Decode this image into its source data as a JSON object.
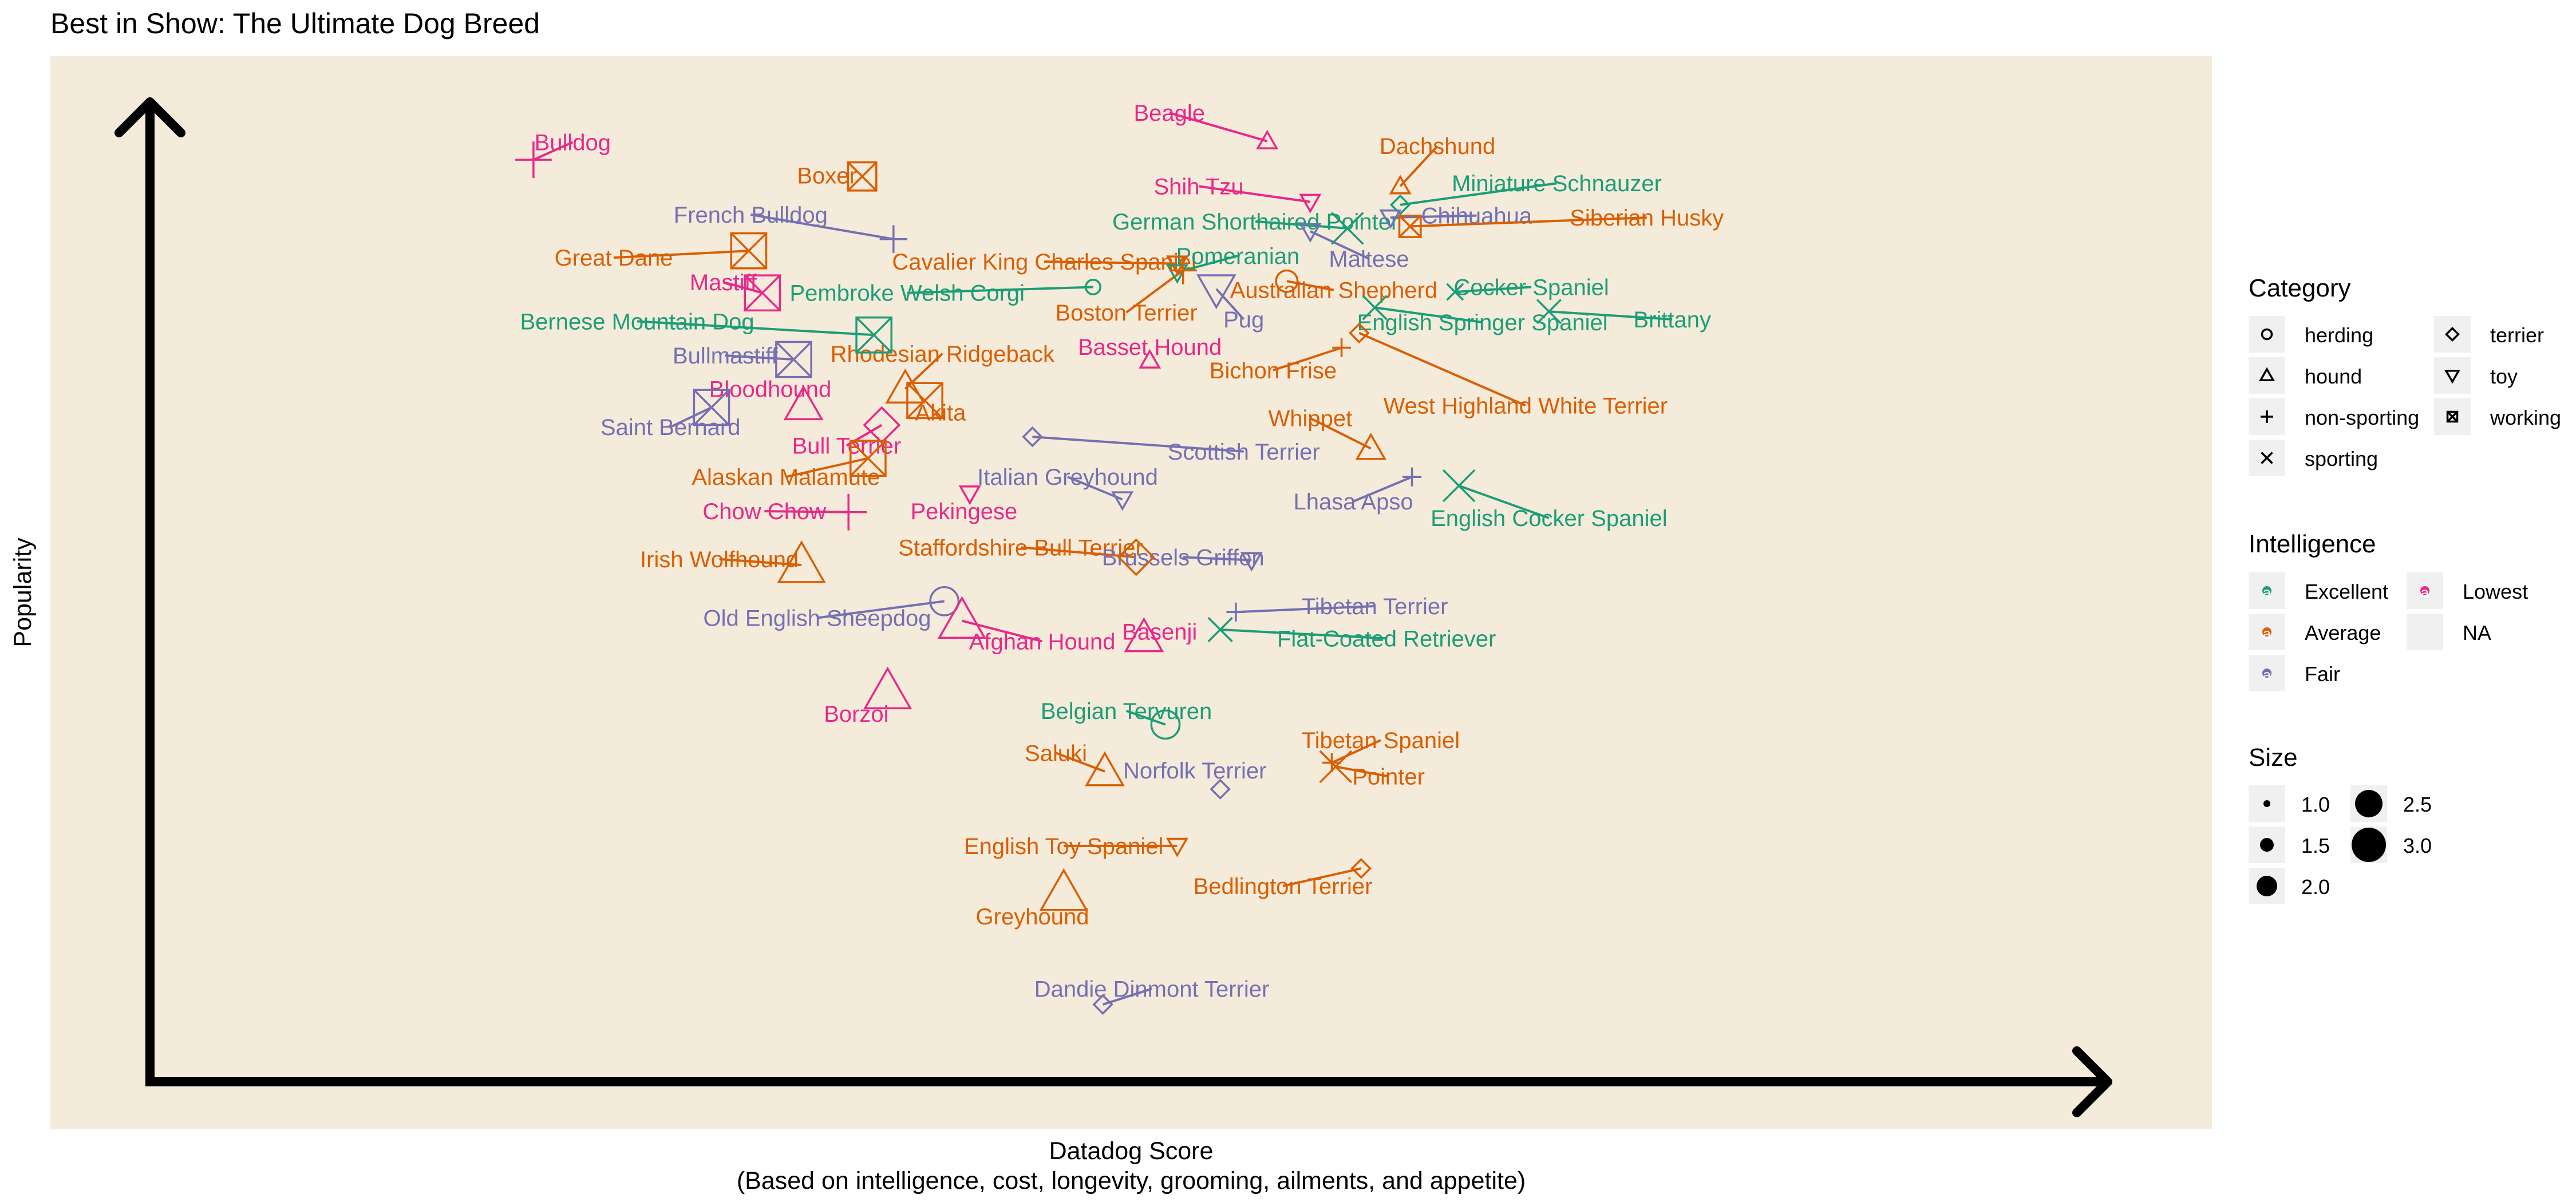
{
  "chart_data": {
    "type": "scatter",
    "title": "Best in Show: The Ultimate Dog Breed",
    "xlabel": "Datadog Score",
    "xlabel_sub": "(Based on intelligence, cost, longevity, grooming, ailments, and appetite)",
    "ylabel": "Popularity",
    "xlim": [
      0,
      100
    ],
    "ylim": [
      0,
      100
    ],
    "grid": false,
    "background": "#f5ebdb",
    "colors": {
      "Excellent": "#1b9e77",
      "Average": "#d95f02",
      "Fair": "#7570b3",
      "Lowest": "#e7298a",
      "NA": "#f0f0f0"
    },
    "points": [
      {
        "breed": "Beagle",
        "category": "hound",
        "intelligence": "Lowest",
        "size": 1.5,
        "x": 57.1,
        "y": 96.1,
        "lx": 52.1,
        "ly": 99.0
      },
      {
        "breed": "Dachshund",
        "category": "hound",
        "intelligence": "Average",
        "size": 1.5,
        "x": 63.9,
        "y": 91.5,
        "lx": 65.8,
        "ly": 95.6
      },
      {
        "breed": "Miniature Schnauzer",
        "category": "terrier",
        "intelligence": "Excellent",
        "size": 1.5,
        "x": 63.9,
        "y": 89.6,
        "lx": 71.9,
        "ly": 91.8
      },
      {
        "breed": "Shih Tzu",
        "category": "toy",
        "intelligence": "Lowest",
        "size": 1.5,
        "x": 59.3,
        "y": 89.9,
        "lx": 53.6,
        "ly": 91.5
      },
      {
        "breed": "Chihuahua",
        "category": "toy",
        "intelligence": "Fair",
        "size": 1.5,
        "x": 63.4,
        "y": 88.3,
        "lx": 67.8,
        "ly": 88.5
      },
      {
        "breed": "Siberian Husky",
        "category": "working",
        "intelligence": "Average",
        "size": 2.0,
        "x": 64.4,
        "y": 87.4,
        "lx": 76.5,
        "ly": 88.3
      },
      {
        "breed": "German Shorthaired Pointer",
        "category": "sporting",
        "intelligence": "Excellent",
        "size": 2.5,
        "x": 61.2,
        "y": 87.2,
        "lx": 56.5,
        "ly": 87.9
      },
      {
        "breed": "Maltese",
        "category": "toy",
        "intelligence": "Fair",
        "size": 1.5,
        "x": 59.3,
        "y": 86.9,
        "lx": 62.3,
        "ly": 84.1
      },
      {
        "breed": "Boxer",
        "category": "working",
        "intelligence": "Average",
        "size": 2.5,
        "x": 36.4,
        "y": 92.5,
        "lx": 34.6,
        "ly": 92.6
      },
      {
        "breed": "Bulldog",
        "category": "non-sporting",
        "intelligence": "Lowest",
        "size": 2.5,
        "x": 19.6,
        "y": 94.2,
        "lx": 21.6,
        "ly": 96.0
      },
      {
        "breed": "French Bulldog",
        "category": "non-sporting",
        "intelligence": "Fair",
        "size": 2.0,
        "x": 38.0,
        "y": 86.1,
        "lx": 30.7,
        "ly": 88.6
      },
      {
        "breed": "Great Dane",
        "category": "working",
        "intelligence": "Average",
        "size": 3.0,
        "x": 30.6,
        "y": 84.9,
        "lx": 23.7,
        "ly": 84.2
      },
      {
        "breed": "Cavalier King Charles Spaniel",
        "category": "toy",
        "intelligence": "Average",
        "size": 1.5,
        "x": 52.5,
        "y": 83.6,
        "lx": 45.7,
        "ly": 83.8
      },
      {
        "breed": "Pomeranian",
        "category": "toy",
        "intelligence": "Excellent",
        "size": 1.5,
        "x": 52.5,
        "y": 82.7,
        "lx": 55.6,
        "ly": 84.4
      },
      {
        "breed": "Mastiff",
        "category": "working",
        "intelligence": "Lowest",
        "size": 3.0,
        "x": 31.3,
        "y": 80.6,
        "lx": 29.3,
        "ly": 81.7
      },
      {
        "breed": "Pembroke Welsh Corgi",
        "category": "herding",
        "intelligence": "Excellent",
        "size": 1.5,
        "x": 48.2,
        "y": 81.2,
        "lx": 38.7,
        "ly": 80.6
      },
      {
        "breed": "Australian Shepherd",
        "category": "herding",
        "intelligence": "Average",
        "size": 2.0,
        "x": 58.1,
        "y": 81.8,
        "lx": 60.5,
        "ly": 80.9
      },
      {
        "breed": "Cocker Spaniel",
        "category": "sporting",
        "intelligence": "Excellent",
        "size": 1.5,
        "x": 66.7,
        "y": 80.7,
        "lx": 70.6,
        "ly": 81.2
      },
      {
        "breed": "Boston Terrier",
        "category": "non-sporting",
        "intelligence": "Average",
        "size": 2.0,
        "x": 52.8,
        "y": 82.9,
        "lx": 49.9,
        "ly": 78.6
      },
      {
        "breed": "Pug",
        "category": "toy",
        "intelligence": "Fair",
        "size": 2.5,
        "x": 54.5,
        "y": 81.0,
        "lx": 55.9,
        "ly": 77.9
      },
      {
        "breed": "Bernese Mountain Dog",
        "category": "working",
        "intelligence": "Excellent",
        "size": 3.0,
        "x": 37.0,
        "y": 76.3,
        "lx": 24.9,
        "ly": 77.7
      },
      {
        "breed": "English Springer Spaniel",
        "category": "sporting",
        "intelligence": "Excellent",
        "size": 2.0,
        "x": 62.6,
        "y": 79.1,
        "lx": 68.1,
        "ly": 77.6
      },
      {
        "breed": "Brittany",
        "category": "sporting",
        "intelligence": "Excellent",
        "size": 2.0,
        "x": 71.5,
        "y": 78.7,
        "lx": 77.8,
        "ly": 77.9
      },
      {
        "breed": "Bullmastiff",
        "category": "working",
        "intelligence": "Fair",
        "size": 3.0,
        "x": 32.9,
        "y": 73.8,
        "lx": 29.4,
        "ly": 74.2
      },
      {
        "breed": "Rhodesian Ridgeback",
        "category": "hound",
        "intelligence": "Average",
        "size": 2.5,
        "x": 38.6,
        "y": 70.8,
        "lx": 40.5,
        "ly": 74.4
      },
      {
        "breed": "Basset Hound",
        "category": "hound",
        "intelligence": "Lowest",
        "size": 1.5,
        "x": 51.1,
        "y": 73.7,
        "lx": 51.1,
        "ly": 75.1
      },
      {
        "breed": "Bichon Frise",
        "category": "non-sporting",
        "intelligence": "Average",
        "size": 1.5,
        "x": 60.9,
        "y": 75.0,
        "lx": 57.4,
        "ly": 72.7
      },
      {
        "breed": "Bloodhound",
        "category": "hound",
        "intelligence": "Lowest",
        "size": 2.5,
        "x": 33.4,
        "y": 69.1,
        "lx": 31.7,
        "ly": 70.8
      },
      {
        "breed": "Akita",
        "category": "working",
        "intelligence": "Average",
        "size": 3.0,
        "x": 39.6,
        "y": 69.6,
        "lx": 40.4,
        "ly": 68.4
      },
      {
        "breed": "West Highland White Terrier",
        "category": "terrier",
        "intelligence": "Average",
        "size": 1.5,
        "x": 61.8,
        "y": 76.5,
        "lx": 70.3,
        "ly": 69.1
      },
      {
        "breed": "Saint Bernard",
        "category": "working",
        "intelligence": "Fair",
        "size": 3.0,
        "x": 28.7,
        "y": 68.9,
        "lx": 26.6,
        "ly": 66.9
      },
      {
        "breed": "Whippet",
        "category": "hound",
        "intelligence": "Average",
        "size": 2.0,
        "x": 62.4,
        "y": 64.7,
        "lx": 59.3,
        "ly": 67.8
      },
      {
        "breed": "Bull Terrier",
        "category": "terrier",
        "intelligence": "Lowest",
        "size": 2.5,
        "x": 37.4,
        "y": 67.1,
        "lx": 35.6,
        "ly": 65.0
      },
      {
        "breed": "Scottish Terrier",
        "category": "terrier",
        "intelligence": "Fair",
        "size": 1.5,
        "x": 45.1,
        "y": 65.9,
        "lx": 55.9,
        "ly": 64.4
      },
      {
        "breed": "Alaskan Malamute",
        "category": "working",
        "intelligence": "Average",
        "size": 3.0,
        "x": 36.7,
        "y": 63.7,
        "lx": 32.5,
        "ly": 61.8
      },
      {
        "breed": "Italian Greyhound",
        "category": "toy",
        "intelligence": "Fair",
        "size": 1.5,
        "x": 49.7,
        "y": 59.5,
        "lx": 46.9,
        "ly": 61.8
      },
      {
        "breed": "Lhasa Apso",
        "category": "non-sporting",
        "intelligence": "Fair",
        "size": 1.5,
        "x": 64.5,
        "y": 61.8,
        "lx": 61.5,
        "ly": 59.3
      },
      {
        "breed": "English Cocker Spaniel",
        "category": "sporting",
        "intelligence": "Excellent",
        "size": 2.5,
        "x": 66.9,
        "y": 60.9,
        "lx": 71.5,
        "ly": 57.6
      },
      {
        "breed": "Chow Chow",
        "category": "non-sporting",
        "intelligence": "Lowest",
        "size": 2.5,
        "x": 35.7,
        "y": 58.2,
        "lx": 31.4,
        "ly": 58.3
      },
      {
        "breed": "Pekingese",
        "category": "toy",
        "intelligence": "Lowest",
        "size": 1.5,
        "x": 41.9,
        "y": 60.1,
        "lx": 41.6,
        "ly": 58.3
      },
      {
        "breed": "Staffordshire Bull Terrier",
        "category": "terrier",
        "intelligence": "Average",
        "size": 2.5,
        "x": 50.4,
        "y": 53.6,
        "lx": 44.5,
        "ly": 54.6
      },
      {
        "breed": "Brussels Griffon",
        "category": "toy",
        "intelligence": "Fair",
        "size": 1.5,
        "x": 56.3,
        "y": 53.3,
        "lx": 52.8,
        "ly": 53.6
      },
      {
        "breed": "Irish Wolfhound",
        "category": "hound",
        "intelligence": "Average",
        "size": 3.0,
        "x": 33.3,
        "y": 52.8,
        "lx": 29.1,
        "ly": 53.4
      },
      {
        "breed": "Old English Sheepdog",
        "category": "herding",
        "intelligence": "Fair",
        "size": 2.5,
        "x": 40.6,
        "y": 49.1,
        "lx": 34.1,
        "ly": 47.4
      },
      {
        "breed": "Tibetan Terrier",
        "category": "non-sporting",
        "intelligence": "Fair",
        "size": 1.5,
        "x": 55.5,
        "y": 48.0,
        "lx": 62.6,
        "ly": 48.6
      },
      {
        "breed": "Afghan Hound",
        "category": "hound",
        "intelligence": "Lowest",
        "size": 3.0,
        "x": 41.5,
        "y": 47.1,
        "lx": 45.6,
        "ly": 45.0
      },
      {
        "breed": "Basenji",
        "category": "hound",
        "intelligence": "Lowest",
        "size": 2.5,
        "x": 50.8,
        "y": 45.4,
        "lx": 51.6,
        "ly": 46.0
      },
      {
        "breed": "Flat-Coated Retriever",
        "category": "sporting",
        "intelligence": "Excellent",
        "size": 2.0,
        "x": 54.7,
        "y": 46.2,
        "lx": 63.2,
        "ly": 45.3
      },
      {
        "breed": "Borzoi",
        "category": "hound",
        "intelligence": "Lowest",
        "size": 3.0,
        "x": 37.7,
        "y": 39.9,
        "lx": 36.1,
        "ly": 37.6
      },
      {
        "breed": "Belgian Tervuren",
        "category": "herding",
        "intelligence": "Excellent",
        "size": 2.5,
        "x": 51.9,
        "y": 36.5,
        "lx": 49.9,
        "ly": 37.9
      },
      {
        "breed": "Tibetan Spaniel",
        "category": "non-sporting",
        "intelligence": "Average",
        "size": 1.5,
        "x": 60.4,
        "y": 32.6,
        "lx": 62.9,
        "ly": 34.9
      },
      {
        "breed": "Pointer",
        "category": "sporting",
        "intelligence": "Average",
        "size": 2.5,
        "x": 60.6,
        "y": 32.2,
        "lx": 63.3,
        "ly": 31.2
      },
      {
        "breed": "Saluki",
        "category": "hound",
        "intelligence": "Average",
        "size": 2.5,
        "x": 48.8,
        "y": 31.7,
        "lx": 46.3,
        "ly": 33.6
      },
      {
        "breed": "Norfolk Terrier",
        "category": "terrier",
        "intelligence": "Fair",
        "size": 1.5,
        "x": 54.7,
        "y": 29.9,
        "lx": 53.4,
        "ly": 31.8
      },
      {
        "breed": "English Toy Spaniel",
        "category": "toy",
        "intelligence": "Average",
        "size": 1.5,
        "x": 52.5,
        "y": 24.1,
        "lx": 46.7,
        "ly": 24.1
      },
      {
        "breed": "Bedlington Terrier",
        "category": "terrier",
        "intelligence": "Average",
        "size": 1.5,
        "x": 61.9,
        "y": 21.8,
        "lx": 57.9,
        "ly": 20.0
      },
      {
        "breed": "Greyhound",
        "category": "hound",
        "intelligence": "Average",
        "size": 3.0,
        "x": 46.7,
        "y": 19.3,
        "lx": 45.1,
        "ly": 16.9
      },
      {
        "breed": "Dandie Dinmont Terrier",
        "category": "terrier",
        "intelligence": "Fair",
        "size": 1.5,
        "x": 48.7,
        "y": 7.9,
        "lx": 51.2,
        "ly": 9.5
      }
    ]
  },
  "legend": {
    "category": {
      "title": "Category",
      "items": [
        {
          "label": "herding",
          "shape": "circle"
        },
        {
          "label": "terrier",
          "shape": "diamond"
        },
        {
          "label": "hound",
          "shape": "triangle"
        },
        {
          "label": "toy",
          "shape": "triangle-down"
        },
        {
          "label": "non-sporting",
          "shape": "plus"
        },
        {
          "label": "working",
          "shape": "square-x"
        },
        {
          "label": "sporting",
          "shape": "x"
        }
      ]
    },
    "intelligence": {
      "title": "Intelligence",
      "items": [
        {
          "label": "Excellent",
          "color": "#1b9e77"
        },
        {
          "label": "Lowest",
          "color": "#e7298a"
        },
        {
          "label": "Average",
          "color": "#d95f02"
        },
        {
          "label": "NA",
          "color": ""
        },
        {
          "label": "Fair",
          "color": "#7570b3"
        }
      ]
    },
    "size": {
      "title": "Size",
      "items": [
        {
          "label": "1.0",
          "value": 1.0
        },
        {
          "label": "2.5",
          "value": 2.5
        },
        {
          "label": "1.5",
          "value": 1.5
        },
        {
          "label": "3.0",
          "value": 3.0
        },
        {
          "label": "2.0",
          "value": 2.0
        }
      ]
    }
  }
}
